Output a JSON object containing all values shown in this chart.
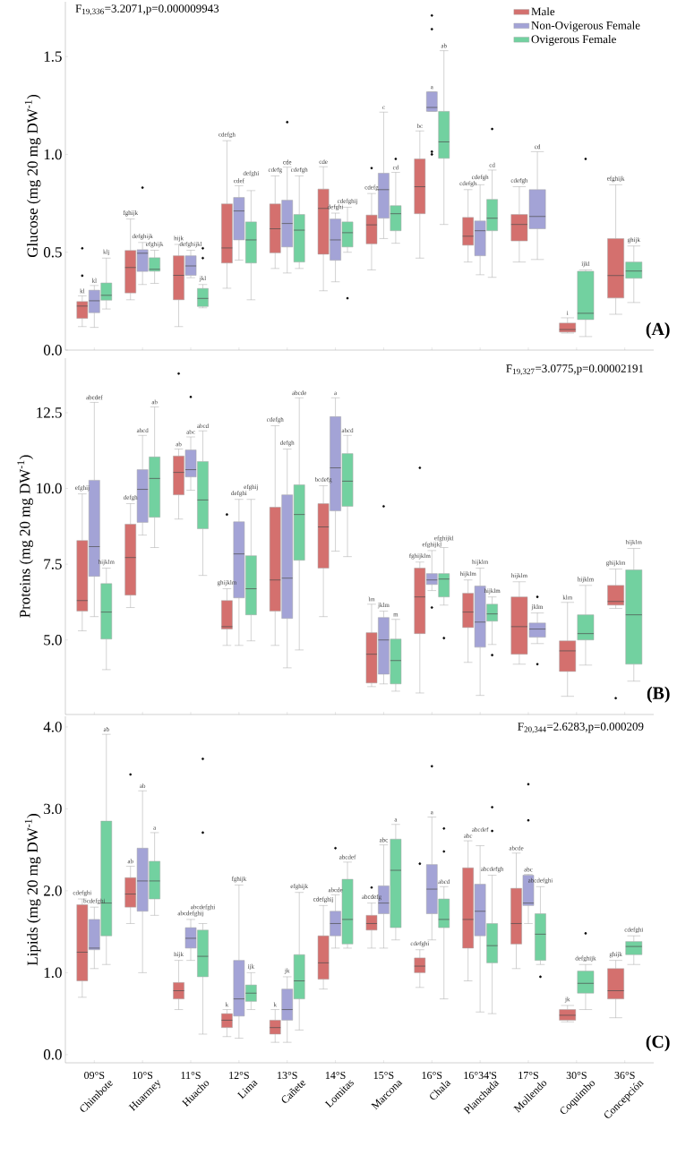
{
  "chart_data": [
    {
      "type": "box",
      "ylabel": "Glucose (mg 20 mg DW$^{-1}$)",
      "legend": "top right",
      "tick_labels": "y",
      "categories": [
        null,
        null,
        null,
        null,
        null,
        null,
        null,
        null,
        null,
        null,
        null,
        null
      ],
      "ylim": [
        0,
        1.78
      ],
      "yticks": [
        {
          "value": 0,
          "label": "0.0"
        },
        {
          "value": 0.5,
          "label": "0.5"
        },
        {
          "value": 1,
          "label": "1.0"
        },
        {
          "value": 1.5,
          "label": "1.5"
        }
      ],
      "series": [
        {
          "name": "Male",
          "color": "#d4706e",
          "boxes": [
            {
              "low": 0.12,
              "q1": 0.162,
              "median": 0.225,
              "q3": 0.248,
              "high": 0.277,
              "outliers": [
                0.38,
                0.52
              ]
            },
            {
              "low": 0.257,
              "q1": 0.292,
              "median": 0.422,
              "q3": 0.509,
              "high": 0.67
            },
            {
              "low": 0.12,
              "q1": 0.257,
              "median": 0.382,
              "q3": 0.482,
              "high": 0.54
            },
            {
              "low": 0.316,
              "q1": 0.445,
              "median": 0.522,
              "q3": 0.747,
              "high": 1.07
            },
            {
              "low": 0.417,
              "q1": 0.497,
              "median": 0.62,
              "q3": 0.747,
              "high": 0.89
            },
            {
              "low": 0.303,
              "q1": 0.49,
              "median": 0.724,
              "q3": 0.823,
              "high": 0.937
            },
            {
              "low": 0.41,
              "q1": 0.543,
              "median": 0.64,
              "q3": 0.69,
              "high": 0.8,
              "outliers": [
                0.93
              ]
            },
            {
              "low": 0.47,
              "q1": 0.697,
              "median": 0.835,
              "q3": 0.977,
              "high": 1.12
            },
            {
              "low": 0.45,
              "q1": 0.536,
              "median": 0.582,
              "q3": 0.678,
              "high": 0.82
            },
            {
              "low": 0.45,
              "q1": 0.558,
              "median": 0.642,
              "q3": 0.693,
              "high": 0.835
            },
            {
              "low": 0.087,
              "q1": 0.092,
              "median": 0.105,
              "q3": 0.138,
              "high": 0.165
            },
            {
              "low": 0.183,
              "q1": 0.266,
              "median": 0.381,
              "q3": 0.57,
              "high": 0.845
            }
          ]
        },
        {
          "name": "Non-Ovigerous Female",
          "color": "#a3a3d6",
          "boxes": [
            {
              "low": 0.116,
              "q1": 0.191,
              "median": 0.252,
              "q3": 0.306,
              "high": 0.33
            },
            {
              "low": 0.335,
              "q1": 0.402,
              "median": 0.495,
              "q3": 0.513,
              "high": 0.55,
              "outliers": [
                0.83
              ]
            },
            {
              "low": 0.37,
              "q1": 0.382,
              "median": 0.43,
              "q3": 0.482,
              "high": 0.51
            },
            {
              "low": 0.46,
              "q1": 0.563,
              "median": 0.711,
              "q3": 0.78,
              "high": 0.84
            },
            {
              "low": 0.394,
              "q1": 0.527,
              "median": 0.647,
              "q3": 0.766,
              "high": 0.935,
              "outliers": [
                1.165
              ]
            },
            {
              "low": 0.349,
              "q1": 0.459,
              "median": 0.563,
              "q3": 0.67,
              "high": 0.7
            },
            {
              "low": 0.57,
              "q1": 0.674,
              "median": 0.82,
              "q3": 0.904,
              "high": 1.216
            },
            {
              "low": 1.22,
              "q1": 1.22,
              "median": 1.24,
              "q3": 1.32,
              "high": 1.32,
              "outliers": [
                1.0,
                1.014,
                1.64,
                1.71
              ]
            },
            {
              "low": 0.385,
              "q1": 0.482,
              "median": 0.61,
              "q3": 0.66,
              "high": 0.845
            },
            {
              "low": 0.463,
              "q1": 0.62,
              "median": 0.683,
              "q3": 0.82,
              "high": 1.014
            },
            null,
            null
          ]
        },
        {
          "name": "Ovigerous Female",
          "color": "#72d1a0",
          "boxes": [
            {
              "low": 0.21,
              "q1": 0.255,
              "median": 0.28,
              "q3": 0.343,
              "high": 0.47
            },
            {
              "low": 0.341,
              "q1": 0.403,
              "median": 0.413,
              "q3": 0.472,
              "high": 0.51
            },
            {
              "low": 0.216,
              "q1": 0.223,
              "median": 0.264,
              "q3": 0.315,
              "high": 0.335,
              "outliers": [
                0.47,
                0.52
              ]
            },
            {
              "low": 0.257,
              "q1": 0.445,
              "median": 0.563,
              "q3": 0.655,
              "high": 0.815
            },
            {
              "low": 0.417,
              "q1": 0.45,
              "median": 0.613,
              "q3": 0.693,
              "high": 0.89
            },
            {
              "low": 0.5,
              "q1": 0.527,
              "median": 0.6,
              "q3": 0.655,
              "high": 0.73,
              "outliers": [
                0.265
              ]
            },
            {
              "low": 0.546,
              "q1": 0.61,
              "median": 0.697,
              "q3": 0.738,
              "high": 0.908,
              "outliers": [
                0.977
              ]
            },
            {
              "low": 0.642,
              "q1": 0.98,
              "median": 1.064,
              "q3": 1.22,
              "high": 1.53
            },
            {
              "low": 0.372,
              "q1": 0.61,
              "median": 0.674,
              "q3": 0.77,
              "high": 0.92,
              "outliers": [
                1.13
              ]
            },
            null,
            {
              "low": 0.069,
              "q1": 0.156,
              "median": 0.188,
              "q3": 0.403,
              "high": 0.41,
              "outliers": [
                0.977
              ]
            },
            {
              "low": 0.243,
              "q1": 0.367,
              "median": 0.404,
              "q3": 0.45,
              "high": 0.532
            }
          ]
        }
      ],
      "annotations": [
        "F$_{19,336}$=3.2071,p=0.000009943",
        "(A)",
        "kl",
        "kl",
        "klj",
        "fghijk",
        "defghijk",
        "efghijk",
        "hijk",
        "defghijkl",
        "jkl",
        "cdefgh",
        "cdef",
        "defghi",
        "cdefg",
        "cde",
        "cdefgh",
        "cde",
        "defghi",
        "cdefghij",
        "cdefg",
        "c",
        "cd",
        "bc",
        "a",
        "ab",
        "cdefgh",
        "cdefgh",
        "cd",
        "cdefgh",
        "cd",
        "i",
        "ijkl",
        "efghijk",
        "ghijk"
      ]
    },
    {
      "type": "box",
      "ylabel": "Proteins (mg 20 mg DW$^{-1}$)",
      "tick_labels": "y",
      "categories": [
        null,
        null,
        null,
        null,
        null,
        null,
        null,
        null,
        null,
        null,
        null,
        null
      ],
      "ylim": [
        2.54,
        14.3
      ],
      "yticks": [
        {
          "value": 5,
          "label": "5.0"
        },
        {
          "value": 7.5,
          "label": "7.5"
        },
        {
          "value": 10,
          "label": "10.0"
        },
        {
          "value": 12.5,
          "label": "12.5"
        }
      ],
      "series": [
        {
          "color": "#d4706e",
          "boxes": [
            {
              "low": 5.3,
              "q1": 5.95,
              "median": 6.3,
              "q3": 8.28,
              "high": 9.82
            },
            {
              "low": 6.07,
              "q1": 6.48,
              "median": 7.72,
              "q3": 8.82,
              "high": 9.5
            },
            {
              "low": 8.99,
              "q1": 9.79,
              "median": 10.53,
              "q3": 11.07,
              "high": 11.3,
              "outliers": [
                13.79
              ]
            },
            {
              "low": 4.82,
              "q1": 5.36,
              "median": 5.44,
              "q3": 6.3,
              "high": 6.69,
              "outliers": [
                9.14
              ]
            },
            {
              "low": 4.82,
              "q1": 5.95,
              "median": 6.98,
              "q3": 9.38,
              "high": 12.07
            },
            {
              "low": 5.77,
              "q1": 7.37,
              "median": 8.73,
              "q3": 9.5,
              "high": 10.09
            },
            {
              "low": 3.46,
              "q1": 3.58,
              "median": 4.53,
              "q3": 5.24,
              "high": 6.18
            },
            {
              "low": 3.25,
              "q1": 5.21,
              "median": 6.42,
              "q3": 7.37,
              "high": 7.57,
              "outliers": [
                10.68
              ]
            },
            {
              "low": 4.26,
              "q1": 5.41,
              "median": 5.92,
              "q3": 6.54,
              "high": 6.98
            },
            {
              "low": 4.2,
              "q1": 4.53,
              "median": 5.44,
              "q3": 6.42,
              "high": 6.92
            },
            {
              "low": 3.14,
              "q1": 3.96,
              "median": 4.64,
              "q3": 4.97,
              "high": 6.24
            },
            {
              "low": 6.04,
              "q1": 6.15,
              "median": 6.27,
              "q3": 6.8,
              "high": 7.34,
              "outliers": [
                3.08
              ]
            }
          ]
        },
        {
          "color": "#a3a3d6",
          "boxes": [
            {
              "low": 5.77,
              "q1": 7.1,
              "median": 8.08,
              "q3": 10.27,
              "high": 12.84
            },
            {
              "low": 8.46,
              "q1": 8.88,
              "median": 9.97,
              "q3": 10.62,
              "high": 11.75
            },
            {
              "low": 9.94,
              "q1": 10.38,
              "median": 10.62,
              "q3": 11.27,
              "high": 11.7,
              "outliers": [
                13.02
              ]
            },
            {
              "low": 4.82,
              "q1": 6.39,
              "median": 7.84,
              "q3": 8.9,
              "high": 9.64
            },
            {
              "low": 4.08,
              "q1": 5.71,
              "median": 7.04,
              "q3": 9.79,
              "high": 11.3
            },
            {
              "low": 7.93,
              "q1": 9.26,
              "median": 10.68,
              "q3": 12.37,
              "high": 12.99
            },
            {
              "low": 3.55,
              "q1": 3.87,
              "median": 5.0,
              "q3": 5.74,
              "high": 5.95,
              "outliers": [
                9.41
              ]
            },
            {
              "low": 6.63,
              "q1": 6.83,
              "median": 6.98,
              "q3": 7.19,
              "high": 7.95,
              "outliers": [
                6.07
              ]
            },
            {
              "low": 3.17,
              "q1": 4.76,
              "median": 5.59,
              "q3": 6.78,
              "high": 7.37
            },
            {
              "low": 4.88,
              "q1": 5.09,
              "median": 5.36,
              "q3": 5.56,
              "high": 5.89,
              "outliers": [
                4.2,
                6.42
              ]
            },
            null,
            null
          ]
        },
        {
          "color": "#72d1a0",
          "boxes": [
            {
              "low": 4.02,
              "q1": 5.03,
              "median": 5.92,
              "q3": 6.86,
              "high": 7.37
            },
            {
              "low": 8.05,
              "q1": 9.05,
              "median": 10.33,
              "q3": 11.04,
              "high": 12.69
            },
            {
              "low": 7.13,
              "q1": 8.67,
              "median": 9.62,
              "q3": 10.89,
              "high": 11.9
            },
            {
              "low": 4.97,
              "q1": 5.83,
              "median": 6.69,
              "q3": 7.78,
              "high": 9.64
            },
            {
              "low": 4.67,
              "q1": 7.63,
              "median": 9.14,
              "q3": 10.12,
              "high": 12.99
            },
            {
              "low": 7.75,
              "q1": 9.41,
              "median": 10.24,
              "q3": 11.15,
              "high": 11.75
            },
            {
              "low": 3.31,
              "q1": 3.55,
              "median": 4.32,
              "q3": 5.03,
              "high": 5.68
            },
            {
              "low": 6.15,
              "q1": 6.42,
              "median": 7.01,
              "q3": 7.19,
              "high": 8.05,
              "outliers": [
                5.06
              ]
            },
            {
              "low": 4.85,
              "q1": 5.62,
              "median": 5.86,
              "q3": 6.18,
              "high": 6.42,
              "outliers": [
                4.5
              ]
            },
            null,
            {
              "low": 4.17,
              "q1": 5.0,
              "median": 5.21,
              "q3": 5.83,
              "high": 6.8
            },
            {
              "low": 3.64,
              "q1": 4.2,
              "median": 5.83,
              "q3": 7.31,
              "high": 8.02
            }
          ]
        }
      ],
      "annotations": [
        "F$_{19,327}$=3.0775,p=0.00002191",
        "(B)",
        "efghij",
        "abcdef",
        "hijklm",
        "defgh",
        "abcd",
        "ab",
        "ab",
        "abc",
        "abcd",
        "ghijklm",
        "defghi",
        "efghij",
        "cdefgh",
        "defgh",
        "abcde",
        "bcdefg",
        "a",
        "abcd",
        "lm",
        "jklm",
        "m",
        "fghijklm",
        "efghijkl",
        "efghijkl",
        "hijklm",
        "hijklm",
        "hijklm",
        "hijklm",
        "jklm",
        "klm",
        "hijklm",
        "ghijklm",
        "hijklm"
      ]
    },
    {
      "type": "box",
      "ylabel": "Lipids (mg 20 mg DW$^{-1}$)",
      "categories": [
        "Chimbote",
        "Huarmey",
        "Huacho",
        "Lima",
        "Cañete",
        "Lomitas",
        "Marcona",
        "Chala",
        "Planchada",
        "Mollendo",
        "Coquimbo",
        "Concepción"
      ],
      "ylim": [
        -0.1,
        4.13
      ],
      "yticks": [
        {
          "value": 0,
          "label": "0.0"
        },
        {
          "value": 1,
          "label": "1.0"
        },
        {
          "value": 2,
          "label": "2.0"
        },
        {
          "value": 3,
          "label": "3.0"
        },
        {
          "value": 4,
          "label": "4.0"
        }
      ],
      "series": [
        {
          "color": "#d4706e",
          "boxes": [
            {
              "low": 0.7,
              "q1": 0.9,
              "median": 1.25,
              "q3": 1.83,
              "high": 1.9
            },
            {
              "low": 1.6,
              "q1": 1.8,
              "median": 1.96,
              "q3": 2.16,
              "high": 2.3,
              "outliers": [
                3.42
              ]
            },
            {
              "low": 0.55,
              "q1": 0.68,
              "median": 0.78,
              "q3": 0.88,
              "high": 1.15
            },
            {
              "low": 0.22,
              "q1": 0.33,
              "median": 0.42,
              "q3": 0.5,
              "high": 0.55
            },
            {
              "low": 0.15,
              "q1": 0.25,
              "median": 0.33,
              "q3": 0.42,
              "high": 0.55
            },
            {
              "low": 0.8,
              "q1": 0.92,
              "median": 1.12,
              "q3": 1.45,
              "high": 1.82
            },
            {
              "low": 1.3,
              "q1": 1.52,
              "median": 1.6,
              "q3": 1.7,
              "high": 1.85,
              "outliers": [
                2.04
              ]
            },
            {
              "low": 0.82,
              "q1": 1.0,
              "median": 1.08,
              "q3": 1.18,
              "high": 1.28,
              "outliers": [
                2.33
              ]
            },
            {
              "low": 0.9,
              "q1": 1.3,
              "median": 1.65,
              "q3": 2.28,
              "high": 2.61
            },
            {
              "low": 1.05,
              "q1": 1.35,
              "median": 1.6,
              "q3": 2.03,
              "high": 2.46
            },
            {
              "low": 0.4,
              "q1": 0.42,
              "median": 0.48,
              "q3": 0.55,
              "high": 0.6
            },
            {
              "low": 0.45,
              "q1": 0.68,
              "median": 0.78,
              "q3": 1.05,
              "high": 1.15
            }
          ]
        },
        {
          "color": "#a3a3d6",
          "boxes": [
            {
              "low": 1.05,
              "q1": 1.28,
              "median": 1.3,
              "q3": 1.65,
              "high": 1.8
            },
            {
              "low": 1.0,
              "q1": 1.75,
              "median": 2.12,
              "q3": 2.52,
              "high": 3.22
            },
            {
              "low": 1.15,
              "q1": 1.3,
              "median": 1.42,
              "q3": 1.55,
              "high": 1.65
            },
            {
              "low": 0.2,
              "q1": 0.47,
              "median": 0.68,
              "q3": 1.15,
              "high": 2.07
            },
            {
              "low": 0.15,
              "q1": 0.42,
              "median": 0.55,
              "q3": 0.8,
              "high": 0.95
            },
            {
              "low": 1.3,
              "q1": 1.45,
              "median": 1.6,
              "q3": 1.75,
              "high": 1.95,
              "outliers": [
                2.52
              ]
            },
            {
              "low": 1.3,
              "q1": 1.72,
              "median": 1.85,
              "q3": 2.06,
              "high": 2.56
            },
            {
              "low": 1.4,
              "q1": 1.72,
              "median": 2.02,
              "q3": 2.32,
              "high": 2.9,
              "outliers": [
                3.52
              ]
            },
            {
              "low": 0.52,
              "q1": 1.45,
              "median": 1.75,
              "q3": 2.08,
              "high": 2.55
            },
            {
              "low": 1.6,
              "q1": 1.82,
              "median": 1.85,
              "q3": 2.19,
              "high": 2.2,
              "outliers": [
                2.86,
                3.3
              ]
            },
            null,
            null
          ]
        },
        {
          "color": "#72d1a0",
          "boxes": [
            {
              "low": 1.1,
              "q1": 1.45,
              "median": 1.85,
              "q3": 2.85,
              "high": 3.91
            },
            {
              "low": 1.7,
              "q1": 1.9,
              "median": 2.12,
              "q3": 2.36,
              "high": 2.71
            },
            {
              "low": 0.25,
              "q1": 0.95,
              "median": 1.2,
              "q3": 1.52,
              "high": 1.6,
              "outliers": [
                2.71,
                3.61
              ]
            },
            {
              "low": 0.55,
              "q1": 0.65,
              "median": 0.75,
              "q3": 0.85,
              "high": 1.0
            },
            {
              "low": 0.3,
              "q1": 0.68,
              "median": 0.9,
              "q3": 1.22,
              "high": 1.98
            },
            {
              "low": 1.3,
              "q1": 1.35,
              "median": 1.65,
              "q3": 2.14,
              "high": 2.35
            },
            {
              "low": 1.4,
              "q1": 1.55,
              "median": 2.25,
              "q3": 2.63,
              "high": 2.81
            },
            {
              "low": 0.68,
              "q1": 1.55,
              "median": 1.65,
              "q3": 1.9,
              "high": 2.05,
              "outliers": [
                2.48,
                2.76
              ]
            },
            {
              "low": 0.5,
              "q1": 1.12,
              "median": 1.33,
              "q3": 1.6,
              "high": 2.19,
              "outliers": [
                2.73,
                3.02
              ]
            },
            {
              "low": 1.1,
              "q1": 1.15,
              "median": 1.47,
              "q3": 1.72,
              "high": 2.05,
              "outliers": [
                0.95
              ]
            },
            {
              "low": 0.55,
              "q1": 0.75,
              "median": 0.87,
              "q3": 1.02,
              "high": 1.1,
              "outliers": [
                1.48
              ]
            },
            {
              "low": 1.1,
              "q1": 1.22,
              "median": 1.32,
              "q3": 1.38,
              "high": 1.45
            }
          ]
        }
      ],
      "annotations": [
        "F$_{20,344}$=2.6283,p=0.000209",
        "(C)",
        "cdefghi",
        "bcdefghi",
        "ab",
        "ab",
        "ab",
        "a",
        "hijk",
        "abcdefghij",
        "abcdefghi",
        "k",
        "fghijk",
        "ijk",
        "k",
        "jk",
        "efghijk",
        "cdefghij",
        "abcde",
        "abcdef",
        "abcdefg",
        "abc",
        "a",
        "cdefghi",
        "a",
        "abcd",
        "abc",
        "abcdef",
        "abcdefgh",
        "abcde",
        "abc",
        "abcdefghi",
        "jk",
        "defghijk",
        "ghijk",
        "cdefghi",
        "09°S",
        "10°S",
        "11°S",
        "12°S",
        "13°S",
        "14°S",
        "15°S",
        "16°S",
        "16°34'S",
        "17°S",
        "30°S",
        "36°S"
      ]
    }
  ]
}
